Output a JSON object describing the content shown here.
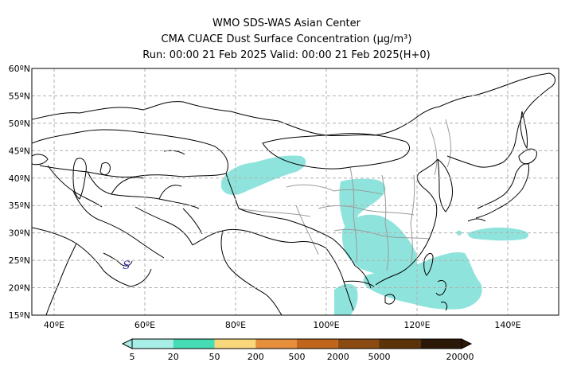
{
  "header": {
    "line1": "WMO SDS-WAS Asian Center",
    "line2": "CMA CUACE Dust Surface Concentration (μg/m³)",
    "line3": "Run: 00:00 21 Feb 2025    Valid: 00:00 21 Feb 2025(H+0)"
  },
  "axes": {
    "lat_labels": [
      "60ºN",
      "55ºN",
      "50ºN",
      "45ºN",
      "40ºN",
      "35ºN",
      "30ºN",
      "25ºN",
      "20ºN",
      "15ºN"
    ],
    "lon_labels": [
      "40ºE",
      "60ºE",
      "80ºE",
      "100ºE",
      "120ºE",
      "140ºE"
    ]
  },
  "legend": {
    "labels": [
      "5",
      "20",
      "50",
      "200",
      "500",
      "2000",
      "5000",
      "20000"
    ],
    "colors": [
      "#a6eee6",
      "#45dcb4",
      "#f8d87a",
      "#e58e3c",
      "#c0651c",
      "#8a4a12",
      "#5c3209",
      "#2c1806"
    ]
  },
  "annotation": {
    "marker": "S",
    "marker_color": "#3a3ab0"
  },
  "dust_color": "#8ee4dc"
}
